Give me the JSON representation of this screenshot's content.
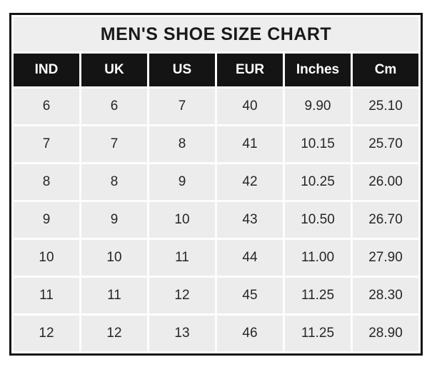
{
  "chart_data": {
    "type": "table",
    "title": "MEN'S SHOE SIZE CHART",
    "columns": [
      "IND",
      "UK",
      "US",
      "EUR",
      "Inches",
      "Cm"
    ],
    "rows": [
      [
        "6",
        "6",
        "7",
        "40",
        "9.90",
        "25.10"
      ],
      [
        "7",
        "7",
        "8",
        "41",
        "10.15",
        "25.70"
      ],
      [
        "8",
        "8",
        "9",
        "42",
        "10.25",
        "26.00"
      ],
      [
        "9",
        "9",
        "10",
        "43",
        "10.50",
        "26.70"
      ],
      [
        "10",
        "10",
        "11",
        "44",
        "11.00",
        "27.90"
      ],
      [
        "11",
        "11",
        "12",
        "45",
        "11.25",
        "28.30"
      ],
      [
        "12",
        "12",
        "13",
        "46",
        "11.25",
        "28.90"
      ]
    ],
    "layout": {
      "grid": "on",
      "legend": "none"
    },
    "colors": {
      "outer_border": "#141414",
      "header_bg": "#141414",
      "header_text": "#ffffff",
      "title_bg": "#efeeee",
      "title_text": "#1a1a1a",
      "cell_bg": "#edecec",
      "cell_text": "#262626",
      "gridline": "#fdfdfd",
      "page_bg": "#ffffff"
    }
  }
}
